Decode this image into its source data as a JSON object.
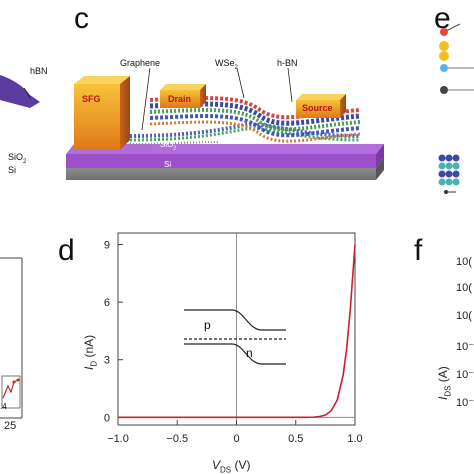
{
  "panels": {
    "c": "c",
    "d": "d",
    "e": "e",
    "f": "f"
  },
  "left_fragment": {
    "hbn": "hBN",
    "sio2": "SiO",
    "sio2_sub": "2",
    "si": "Si",
    "tick_25": "25",
    "tick_4": ".4"
  },
  "device": {
    "graphene": "Graphene",
    "wse2": "WSe",
    "wse2_sub": "2",
    "hbn": "h-BN",
    "sfg": "SFG",
    "drain": "Drain",
    "source": "Source",
    "sio2": "SiO",
    "sio2_sub": "2",
    "si": "Si"
  },
  "right_fragment": {
    "ylabel_main": "I",
    "ylabel_sub": "DS",
    "ylabel_unit": " (A)",
    "ticks": [
      "10(",
      "10(",
      "10(",
      "10⁻",
      "10⁻",
      "10⁻"
    ]
  },
  "chart_data": {
    "type": "line",
    "xlabel": "V",
    "xlabel_sub": "DS",
    "xlabel_unit": " (V)",
    "ylabel": "I",
    "ylabel_sub": "D",
    "ylabel_unit": " (nA)",
    "xlim": [
      -1.0,
      1.0
    ],
    "ylim": [
      -0.4,
      9.6
    ],
    "x_ticks": [
      "−1.0",
      "−0.5",
      "0",
      "0.5",
      "1.0"
    ],
    "x_tick_values": [
      -1.0,
      -0.5,
      0,
      0.5,
      1.0
    ],
    "y_ticks": [
      "0",
      "3",
      "6",
      "9"
    ],
    "y_tick_values": [
      0,
      3,
      6,
      9
    ],
    "series": [
      {
        "color": "#c8202c",
        "x": [
          -1.0,
          -0.5,
          0.0,
          0.5,
          0.6,
          0.65,
          0.7,
          0.75,
          0.8,
          0.85,
          0.9,
          0.93,
          0.96,
          1.0
        ],
        "y": [
          0.0,
          0.0,
          0.0,
          0.0,
          0.0,
          0.01,
          0.04,
          0.12,
          0.35,
          0.9,
          2.2,
          3.6,
          5.6,
          9.0
        ]
      }
    ],
    "inset_band": {
      "p_label": "p",
      "n_label": "n"
    }
  }
}
